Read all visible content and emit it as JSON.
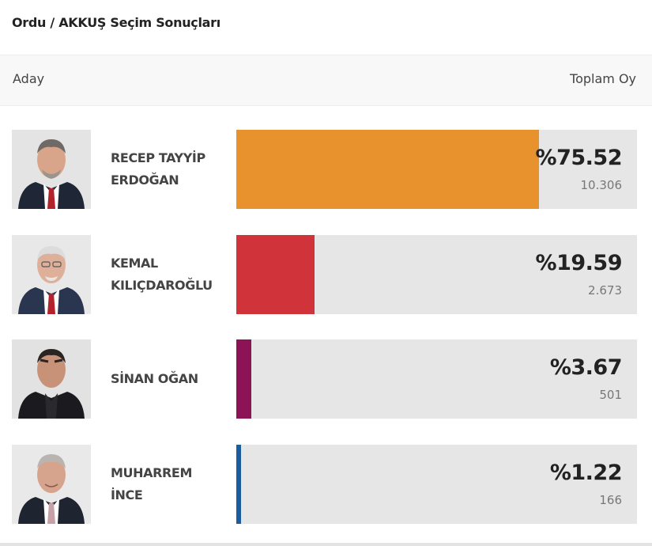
{
  "page": {
    "title": "Ordu / AKKUŞ Seçim Sonuçları"
  },
  "header": {
    "candidate_col": "Aday",
    "votes_col": "Toplam Oy"
  },
  "candidates": [
    {
      "name_line1": "RECEP TAYYİP",
      "name_line2": "ERDOĞAN",
      "percent_label": "%75.52",
      "votes": "10.306",
      "share": 75.52,
      "color": "#E8922E",
      "avatar": "candidate-photo-icon"
    },
    {
      "name_line1": "KEMAL",
      "name_line2": "KILIÇDAROĞLU",
      "percent_label": "%19.59",
      "votes": "2.673",
      "share": 19.59,
      "color": "#D0343A",
      "avatar": "candidate-photo-icon"
    },
    {
      "name_line1": "SİNAN OĞAN",
      "name_line2": "",
      "percent_label": "%3.67",
      "votes": "501",
      "share": 3.67,
      "color": "#8C1456",
      "avatar": "candidate-photo-icon"
    },
    {
      "name_line1": "MUHARREM",
      "name_line2": "İNCE",
      "percent_label": "%1.22",
      "votes": "166",
      "share": 1.22,
      "color": "#1A5C9E",
      "avatar": "candidate-photo-icon"
    }
  ]
}
